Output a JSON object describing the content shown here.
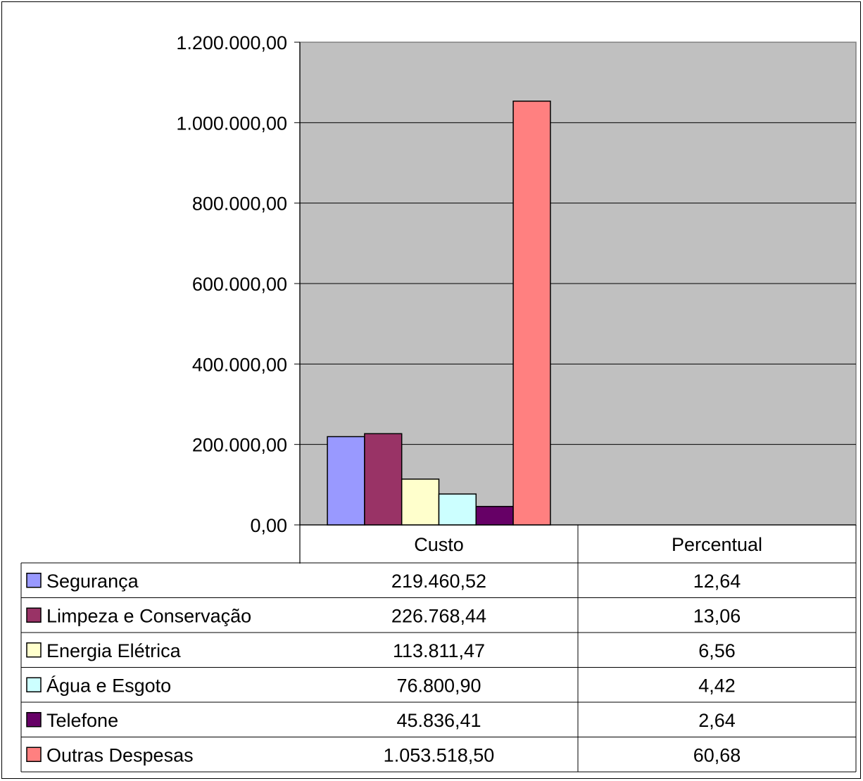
{
  "chart_data": {
    "type": "bar",
    "categories": [
      "Custo",
      "Percentual"
    ],
    "series": [
      {
        "name": "Segurança",
        "color": "#9999ff",
        "values": [
          219460.52,
          12.64
        ],
        "labels": [
          "219.460,52",
          "12,64"
        ]
      },
      {
        "name": "Limpeza e Conservação",
        "color": "#993366",
        "values": [
          226768.44,
          13.06
        ],
        "labels": [
          "226.768,44",
          "13,06"
        ]
      },
      {
        "name": "Energia Elétrica",
        "color": "#ffffcc",
        "values": [
          113811.47,
          6.56
        ],
        "labels": [
          "113.811,47",
          "6,56"
        ]
      },
      {
        "name": "Água e Esgoto",
        "color": "#ccffff",
        "values": [
          76800.9,
          4.42
        ],
        "labels": [
          "76.800,90",
          "4,42"
        ]
      },
      {
        "name": "Telefone",
        "color": "#660066",
        "values": [
          45836.41,
          2.64
        ],
        "labels": [
          "45.836,41",
          "2,64"
        ]
      },
      {
        "name": "Outras Despesas",
        "color": "#ff8080",
        "values": [
          1053518.5,
          60.68
        ],
        "labels": [
          "1.053.518,50",
          "60,68"
        ]
      }
    ],
    "yticks": [
      0,
      200000,
      400000,
      600000,
      800000,
      1000000,
      1200000
    ],
    "ytick_labels": [
      "0,00",
      "200.000,00",
      "400.000,00",
      "600.000,00",
      "800.000,00",
      "1.000.000,00",
      "1.200.000,00"
    ],
    "ylim": [
      0,
      1200000
    ],
    "grid": true,
    "plot_background": "#c0c0c0",
    "legend": "data-table-below"
  }
}
